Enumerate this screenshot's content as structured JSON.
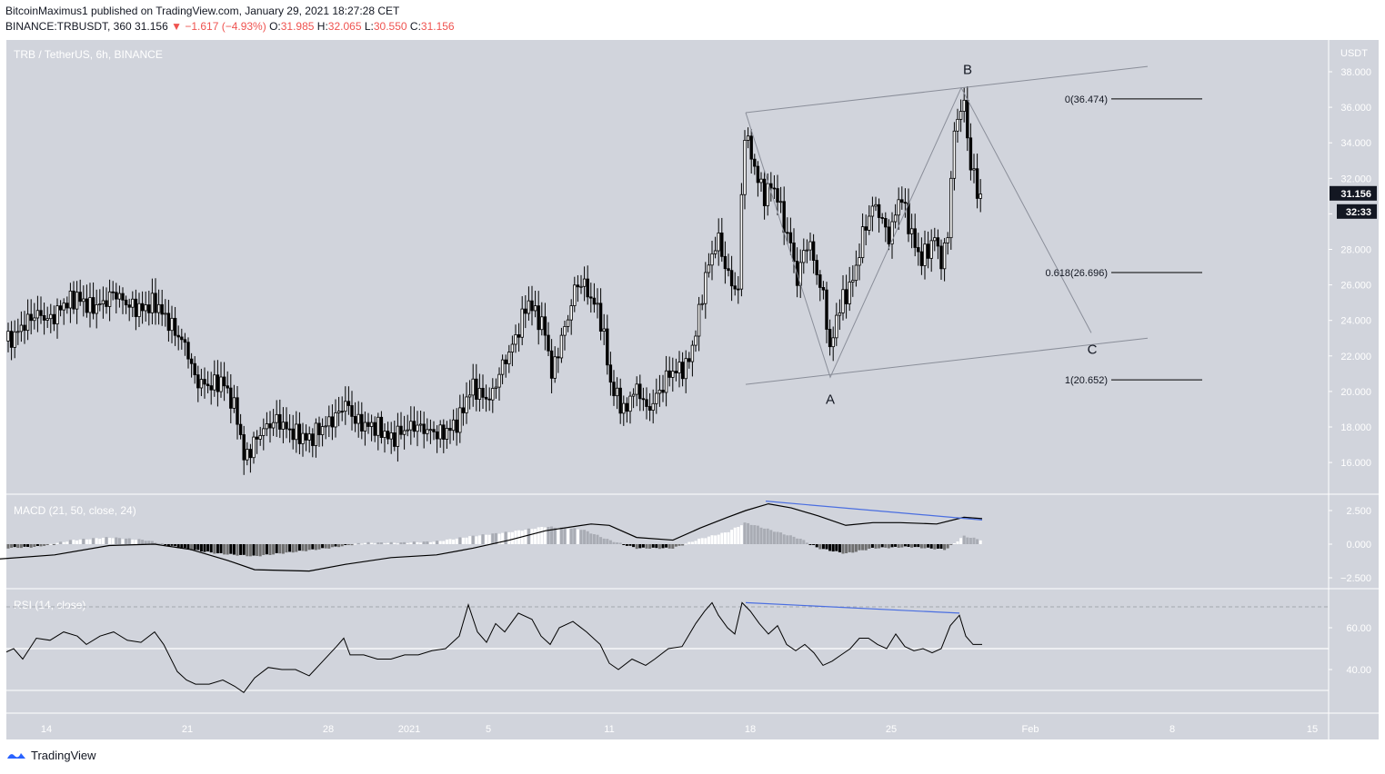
{
  "header": {
    "published_line": "BitcoinMaximus1 published on TradingView.com, January 29, 2021 18:27:28 CET",
    "symbol": "BINANCE:TRBUSDT, 360",
    "last_price": "31.156",
    "change": "−1.617 (−4.93%)",
    "open_label": "O:",
    "open": "31.985",
    "high_label": "H:",
    "high": "32.065",
    "low_label": "L:",
    "low": "30.550",
    "close_label": "C:",
    "close": "31.156"
  },
  "footer": {
    "brand": "TradingView"
  },
  "colors": {
    "chart_bg": "#d1d4dc",
    "candle": "#000000",
    "macd_line": "#000000",
    "signal_line": "#4a6ee0",
    "divergence": "#4a6ee0",
    "hist_strong": "#000000",
    "hist_mid": "#6f6f6f",
    "hist_light": "#ffffff",
    "price_tag_bg": "#131722",
    "price_tag_text": "#ffffff"
  },
  "chart_data": {
    "type": "candlestick",
    "title": "TRB / TetherUS, 6h, BINANCE",
    "price_axis_unit": "USDT",
    "y_ticks": [
      "38.000",
      "36.000",
      "34.000",
      "32.000",
      "30.000",
      "28.000",
      "26.000",
      "24.000",
      "22.000",
      "20.000",
      "18.000",
      "16.000"
    ],
    "ylim": [
      14.5,
      39.0
    ],
    "x_ticks": [
      "14",
      "21",
      "28",
      "2021",
      "5",
      "11",
      "18",
      "25",
      "Feb",
      "8",
      "15"
    ],
    "last_price_tag": "31.156",
    "countdown_tag": "32:33",
    "price_path": [
      [
        0,
        23.0
      ],
      [
        10,
        22.8
      ],
      [
        25,
        23.7
      ],
      [
        40,
        24.4
      ],
      [
        55,
        24.0
      ],
      [
        70,
        24.9
      ],
      [
        85,
        25.3
      ],
      [
        100,
        24.7
      ],
      [
        115,
        25.0
      ],
      [
        125,
        25.6
      ],
      [
        140,
        24.9
      ],
      [
        155,
        24.6
      ],
      [
        170,
        25.0
      ],
      [
        180,
        24.3
      ],
      [
        195,
        23.2
      ],
      [
        205,
        22.5
      ],
      [
        215,
        20.6
      ],
      [
        230,
        20.3
      ],
      [
        245,
        20.6
      ],
      [
        255,
        19.4
      ],
      [
        262,
        18.4
      ],
      [
        268,
        16.2
      ],
      [
        275,
        16.7
      ],
      [
        285,
        17.6
      ],
      [
        295,
        18.1
      ],
      [
        305,
        18.4
      ],
      [
        315,
        17.9
      ],
      [
        325,
        17.6
      ],
      [
        340,
        17.3
      ],
      [
        350,
        17.8
      ],
      [
        360,
        18.2
      ],
      [
        370,
        18.6
      ],
      [
        380,
        19.4
      ],
      [
        390,
        18.4
      ],
      [
        400,
        18.1
      ],
      [
        415,
        18.0
      ],
      [
        430,
        17.3
      ],
      [
        440,
        17.7
      ],
      [
        455,
        18.1
      ],
      [
        470,
        17.8
      ],
      [
        485,
        17.6
      ],
      [
        495,
        17.9
      ],
      [
        505,
        18.4
      ],
      [
        512,
        19.5
      ],
      [
        520,
        20.3
      ],
      [
        530,
        19.7
      ],
      [
        540,
        19.6
      ],
      [
        550,
        21.2
      ],
      [
        560,
        22.2
      ],
      [
        570,
        23.4
      ],
      [
        580,
        25.1
      ],
      [
        590,
        24.3
      ],
      [
        600,
        23.3
      ],
      [
        607,
        20.8
      ],
      [
        615,
        22.6
      ],
      [
        625,
        24.2
      ],
      [
        632,
        25.8
      ],
      [
        640,
        26.2
      ],
      [
        650,
        25.2
      ],
      [
        658,
        24.6
      ],
      [
        665,
        22.8
      ],
      [
        672,
        20.2
      ],
      [
        680,
        19.6
      ],
      [
        688,
        18.7
      ],
      [
        695,
        20.1
      ],
      [
        705,
        19.9
      ],
      [
        712,
        18.8
      ],
      [
        720,
        19.6
      ],
      [
        728,
        20.2
      ],
      [
        735,
        21.0
      ],
      [
        745,
        21.2
      ],
      [
        755,
        21.4
      ],
      [
        762,
        22.6
      ],
      [
        768,
        24.2
      ],
      [
        775,
        26.3
      ],
      [
        782,
        27.6
      ],
      [
        790,
        28.6
      ],
      [
        797,
        27.1
      ],
      [
        805,
        26.0
      ],
      [
        812,
        25.7
      ],
      [
        818,
        34.8
      ],
      [
        825,
        33.5
      ],
      [
        832,
        32.2
      ],
      [
        840,
        31.0
      ],
      [
        848,
        31.6
      ],
      [
        855,
        31.0
      ],
      [
        862,
        29.4
      ],
      [
        870,
        28.2
      ],
      [
        877,
        26.1
      ],
      [
        885,
        28.3
      ],
      [
        892,
        28.1
      ],
      [
        900,
        26.2
      ],
      [
        907,
        25.1
      ],
      [
        913,
        21.9
      ],
      [
        918,
        23.9
      ],
      [
        925,
        25.0
      ],
      [
        932,
        25.6
      ],
      [
        940,
        26.6
      ],
      [
        948,
        28.7
      ],
      [
        955,
        29.8
      ],
      [
        962,
        30.6
      ],
      [
        970,
        29.6
      ],
      [
        978,
        28.6
      ],
      [
        985,
        30.1
      ],
      [
        990,
        31.2
      ],
      [
        998,
        29.6
      ],
      [
        1005,
        28.4
      ],
      [
        1012,
        27.4
      ],
      [
        1020,
        27.9
      ],
      [
        1028,
        28.7
      ],
      [
        1035,
        27.3
      ],
      [
        1042,
        28.6
      ],
      [
        1048,
        34.2
      ],
      [
        1055,
        35.7
      ],
      [
        1060,
        36.5
      ],
      [
        1065,
        33.2
      ],
      [
        1070,
        32.6
      ],
      [
        1075,
        30.8
      ],
      [
        1080,
        31.2
      ]
    ],
    "annotations": {
      "wave_labels": [
        "A",
        "B",
        "C"
      ],
      "fib_levels": [
        {
          "label": "0(36.474)",
          "value": 36.474
        },
        {
          "label": "0.618(26.696)",
          "value": 26.696
        },
        {
          "label": "1(20.652)",
          "value": 20.652
        }
      ],
      "channel_upper": [
        [
          820,
          35.7
        ],
        [
          1262,
          38.3
        ]
      ],
      "channel_lower": [
        [
          820,
          20.4
        ],
        [
          1262,
          23.0
        ]
      ],
      "wave_path": [
        [
          820,
          35.7
        ],
        [
          913,
          20.8
        ],
        [
          1057,
          37.1
        ],
        [
          1200,
          23.3
        ]
      ]
    },
    "macd": {
      "title": "MACD (21, 50, close, 24)",
      "y_ticks": [
        "2.500",
        "0.000",
        "−2.500"
      ],
      "ylim": [
        -3.5,
        3.5
      ],
      "line_path": [
        [
          0,
          -1.1
        ],
        [
          60,
          -0.8
        ],
        [
          120,
          -0.1
        ],
        [
          170,
          0.0
        ],
        [
          210,
          -0.4
        ],
        [
          250,
          -1.2
        ],
        [
          280,
          -1.9
        ],
        [
          340,
          -2.0
        ],
        [
          380,
          -1.5
        ],
        [
          430,
          -1.0
        ],
        [
          480,
          -0.8
        ],
        [
          520,
          -0.3
        ],
        [
          560,
          0.3
        ],
        [
          600,
          1.0
        ],
        [
          650,
          1.5
        ],
        [
          670,
          1.4
        ],
        [
          700,
          0.5
        ],
        [
          740,
          0.3
        ],
        [
          770,
          1.2
        ],
        [
          800,
          2.0
        ],
        [
          820,
          2.5
        ],
        [
          845,
          3.0
        ],
        [
          870,
          2.7
        ],
        [
          900,
          2.1
        ],
        [
          930,
          1.4
        ],
        [
          960,
          1.6
        ],
        [
          990,
          1.6
        ],
        [
          1030,
          1.5
        ],
        [
          1060,
          2.0
        ],
        [
          1080,
          1.9
        ]
      ],
      "signal_divergence": [
        [
          842,
          3.2
        ],
        [
          1080,
          1.8
        ]
      ],
      "histogram_path": [
        [
          0,
          -0.3
        ],
        [
          40,
          -0.2
        ],
        [
          80,
          0.3
        ],
        [
          120,
          0.5
        ],
        [
          160,
          0.3
        ],
        [
          200,
          -0.3
        ],
        [
          240,
          -0.7
        ],
        [
          280,
          -0.9
        ],
        [
          320,
          -0.6
        ],
        [
          360,
          -0.3
        ],
        [
          400,
          0.1
        ],
        [
          440,
          0.1
        ],
        [
          480,
          0.2
        ],
        [
          520,
          0.6
        ],
        [
          560,
          0.9
        ],
        [
          600,
          1.3
        ],
        [
          640,
          1.1
        ],
        [
          670,
          0.3
        ],
        [
          700,
          -0.3
        ],
        [
          740,
          -0.3
        ],
        [
          770,
          0.4
        ],
        [
          800,
          0.9
        ],
        [
          820,
          1.6
        ],
        [
          850,
          1.0
        ],
        [
          880,
          0.4
        ],
        [
          900,
          -0.3
        ],
        [
          930,
          -0.7
        ],
        [
          960,
          -0.3
        ],
        [
          1000,
          -0.2
        ],
        [
          1040,
          -0.4
        ],
        [
          1060,
          0.6
        ],
        [
          1080,
          0.3
        ]
      ]
    },
    "rsi": {
      "title": "RSI (14, close)",
      "y_ticks": [
        "60.00",
        "40.00"
      ],
      "ylim": [
        28,
        80
      ],
      "path": [
        [
          0,
          47
        ],
        [
          15,
          50
        ],
        [
          25,
          45
        ],
        [
          40,
          55
        ],
        [
          55,
          54
        ],
        [
          70,
          58
        ],
        [
          85,
          56
        ],
        [
          95,
          52
        ],
        [
          110,
          56
        ],
        [
          125,
          58
        ],
        [
          140,
          54
        ],
        [
          155,
          53
        ],
        [
          170,
          58
        ],
        [
          180,
          52
        ],
        [
          195,
          39
        ],
        [
          205,
          35
        ],
        [
          215,
          33
        ],
        [
          230,
          33
        ],
        [
          245,
          35
        ],
        [
          258,
          32
        ],
        [
          268,
          29
        ],
        [
          280,
          36
        ],
        [
          295,
          41
        ],
        [
          310,
          40
        ],
        [
          325,
          40
        ],
        [
          340,
          37
        ],
        [
          355,
          44
        ],
        [
          370,
          51
        ],
        [
          378,
          55
        ],
        [
          385,
          47
        ],
        [
          400,
          47
        ],
        [
          415,
          45
        ],
        [
          430,
          45
        ],
        [
          445,
          47
        ],
        [
          460,
          47
        ],
        [
          475,
          49
        ],
        [
          490,
          50
        ],
        [
          505,
          56
        ],
        [
          515,
          71
        ],
        [
          525,
          58
        ],
        [
          535,
          53
        ],
        [
          545,
          62
        ],
        [
          555,
          58
        ],
        [
          570,
          67
        ],
        [
          585,
          64
        ],
        [
          595,
          56
        ],
        [
          605,
          52
        ],
        [
          615,
          60
        ],
        [
          630,
          63
        ],
        [
          645,
          58
        ],
        [
          660,
          52
        ],
        [
          670,
          43
        ],
        [
          680,
          40
        ],
        [
          695,
          45
        ],
        [
          710,
          42
        ],
        [
          720,
          45
        ],
        [
          735,
          50
        ],
        [
          750,
          51
        ],
        [
          765,
          62
        ],
        [
          775,
          68
        ],
        [
          783,
          72
        ],
        [
          790,
          66
        ],
        [
          800,
          60
        ],
        [
          808,
          57
        ],
        [
          816,
          72
        ],
        [
          825,
          68
        ],
        [
          835,
          62
        ],
        [
          845,
          57
        ],
        [
          855,
          61
        ],
        [
          865,
          52
        ],
        [
          875,
          49
        ],
        [
          885,
          52
        ],
        [
          895,
          48
        ],
        [
          905,
          42
        ],
        [
          915,
          44
        ],
        [
          925,
          47
        ],
        [
          935,
          50
        ],
        [
          945,
          55
        ],
        [
          955,
          55
        ],
        [
          965,
          52
        ],
        [
          975,
          50
        ],
        [
          985,
          57
        ],
        [
          995,
          51
        ],
        [
          1005,
          49
        ],
        [
          1015,
          50
        ],
        [
          1025,
          48
        ],
        [
          1035,
          50
        ],
        [
          1045,
          61
        ],
        [
          1055,
          66
        ],
        [
          1062,
          56
        ],
        [
          1070,
          52
        ],
        [
          1080,
          52
        ]
      ],
      "divergence": [
        [
          820,
          72
        ],
        [
          1055,
          67
        ]
      ]
    }
  }
}
